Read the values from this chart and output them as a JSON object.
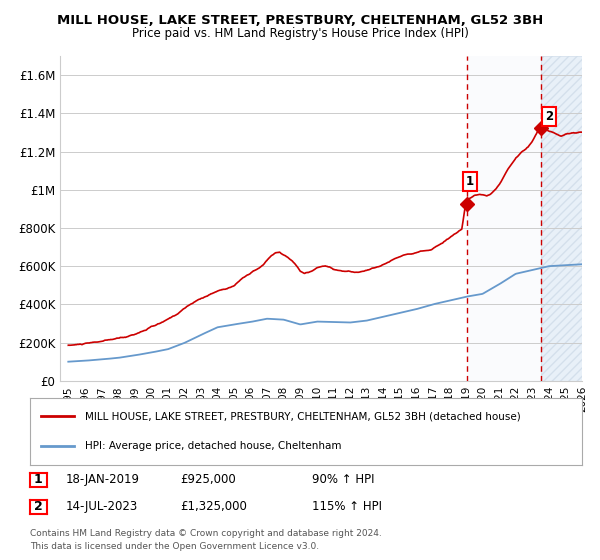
{
  "title": "MILL HOUSE, LAKE STREET, PRESTBURY, CHELTENHAM, GL52 3BH",
  "subtitle": "Price paid vs. HM Land Registry's House Price Index (HPI)",
  "ylim": [
    0,
    1700000
  ],
  "xlim_start": 1994.5,
  "xlim_end": 2026.0,
  "yticks": [
    0,
    200000,
    400000,
    600000,
    800000,
    1000000,
    1200000,
    1400000,
    1600000
  ],
  "ytick_labels": [
    "£0",
    "£200K",
    "£400K",
    "£600K",
    "£800K",
    "£1M",
    "£1.2M",
    "£1.4M",
    "£1.6M"
  ],
  "xticks": [
    1995,
    1996,
    1997,
    1998,
    1999,
    2000,
    2001,
    2002,
    2003,
    2004,
    2005,
    2006,
    2007,
    2008,
    2009,
    2010,
    2011,
    2012,
    2013,
    2014,
    2015,
    2016,
    2017,
    2018,
    2019,
    2020,
    2021,
    2022,
    2023,
    2024,
    2025,
    2026
  ],
  "line1_color": "#cc0000",
  "line2_color": "#6699cc",
  "sale1_x": 2019.04,
  "sale1_y": 925000,
  "sale2_x": 2023.53,
  "sale2_y": 1325000,
  "legend1_label": "MILL HOUSE, LAKE STREET, PRESTBURY, CHELTENHAM, GL52 3BH (detached house)",
  "legend2_label": "HPI: Average price, detached house, Cheltenham",
  "annotation1_num": "1",
  "annotation1_date": "18-JAN-2019",
  "annotation1_price": "£925,000",
  "annotation1_hpi": "90% ↑ HPI",
  "annotation2_num": "2",
  "annotation2_date": "14-JUL-2023",
  "annotation2_price": "£1,325,000",
  "annotation2_hpi": "115% ↑ HPI",
  "footer1": "Contains HM Land Registry data © Crown copyright and database right 2024.",
  "footer2": "This data is licensed under the Open Government Licence v3.0.",
  "background_color": "#ffffff",
  "grid_color": "#cccccc",
  "shaded_region_color": "#ddeeff"
}
